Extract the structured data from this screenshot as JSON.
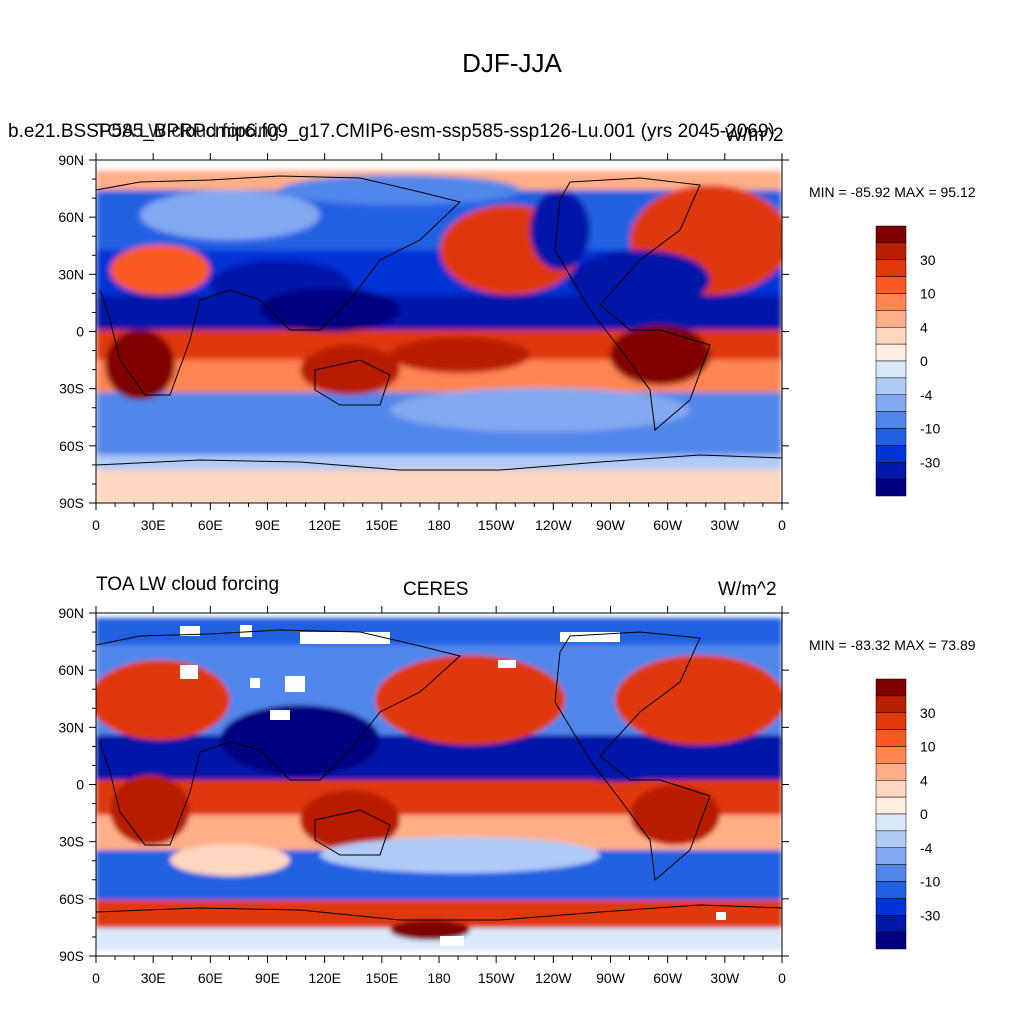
{
  "page": {
    "title": "DJF-JJA"
  },
  "chart_data": [
    {
      "type": "heatmap",
      "title": "DJF-JJA",
      "left_title": "b.e21.BSSP585_BPRPcmip6.f09_g17.CMIP6-esm-ssp585-ssp126-Lu.001 (yrs 2045-2069)",
      "left_title_overlay": "TOA LW cloud forcing",
      "center_title": "",
      "right_title": "W/m^2",
      "stats": {
        "min": -85.92,
        "max": 95.12,
        "label": "MIN = -85.92 MAX =  95.12"
      },
      "x_ticks": [
        "0",
        "30E",
        "60E",
        "90E",
        "120E",
        "150E",
        "180",
        "150W",
        "120W",
        "90W",
        "60W",
        "30W",
        "0"
      ],
      "y_ticks": [
        "90N",
        "60N",
        "30N",
        "0",
        "30S",
        "60S",
        "90S"
      ],
      "xlim": [
        0,
        360
      ],
      "ylim": [
        -90,
        90
      ],
      "colorbar": {
        "levels": [
          -30,
          -20,
          -10,
          -8,
          -4,
          -2,
          0,
          2,
          4,
          8,
          10,
          20,
          30
        ],
        "labels": [
          "30",
          "10",
          "4",
          "0",
          "-4",
          "-10",
          "-30"
        ],
        "colors": [
          "#800000",
          "#b81e00",
          "#e0390b",
          "#fa5a22",
          "#ff8552",
          "#ffae87",
          "#ffd6be",
          "#ffeee0",
          "#d9e8fb",
          "#b0cbf6",
          "#83a9f0",
          "#5186ea",
          "#2060e2",
          "#0033d6",
          "#0018a9",
          "#000080"
        ]
      }
    },
    {
      "type": "heatmap",
      "title": "DJF-JJA",
      "left_title": "TOA LW cloud forcing",
      "center_title": "CERES",
      "right_title": "W/m^2",
      "stats": {
        "min": -83.32,
        "max": 73.89,
        "label": "MIN = -83.32 MAX =  73.89"
      },
      "x_ticks": [
        "0",
        "30E",
        "60E",
        "90E",
        "120E",
        "150E",
        "180",
        "150W",
        "120W",
        "90W",
        "60W",
        "30W",
        "0"
      ],
      "y_ticks": [
        "90N",
        "60N",
        "30N",
        "0",
        "30S",
        "60S",
        "90S"
      ],
      "xlim": [
        0,
        360
      ],
      "ylim": [
        -90,
        90
      ],
      "colorbar": {
        "levels": [
          -30,
          -20,
          -10,
          -8,
          -4,
          -2,
          0,
          2,
          4,
          8,
          10,
          20,
          30
        ],
        "labels": [
          "30",
          "10",
          "4",
          "0",
          "-4",
          "-10",
          "-30"
        ],
        "colors": [
          "#800000",
          "#b81e00",
          "#e0390b",
          "#fa5a22",
          "#ff8552",
          "#ffae87",
          "#ffd6be",
          "#ffeee0",
          "#d9e8fb",
          "#b0cbf6",
          "#83a9f0",
          "#5186ea",
          "#2060e2",
          "#0033d6",
          "#0018a9",
          "#000080"
        ]
      }
    }
  ]
}
